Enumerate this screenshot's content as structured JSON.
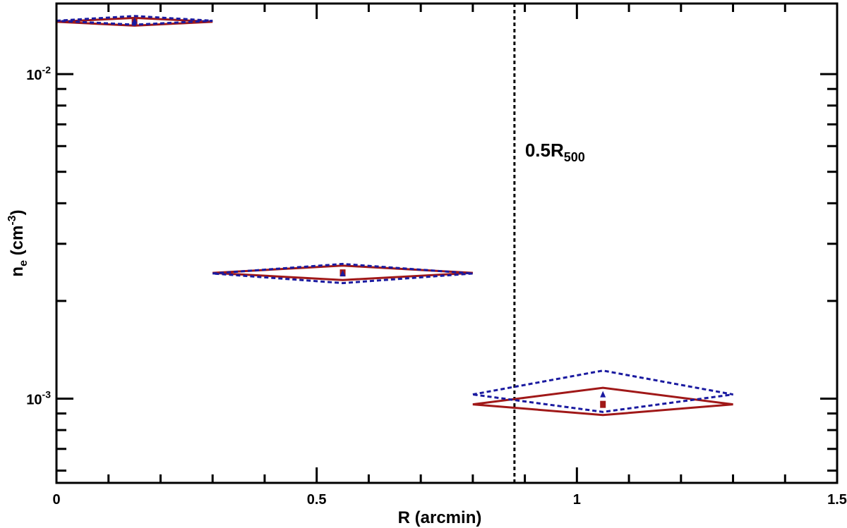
{
  "chart_data": {
    "type": "scatter",
    "title": "",
    "xlabel": "R (arcmin)",
    "ylabel_main": "n",
    "ylabel_sub": "e",
    "ylabel_unit_pre": " (cm",
    "ylabel_unit_sup": "-3",
    "ylabel_unit_post": ")",
    "xlim": [
      0,
      1.5
    ],
    "ylim": [
      0.00055,
      0.0165
    ],
    "yscale": "log",
    "grid": false,
    "x_ticks": [
      {
        "value": 0,
        "label": "0"
      },
      {
        "value": 0.5,
        "label": "0.5"
      },
      {
        "value": 1,
        "label": "1"
      },
      {
        "value": 1.5,
        "label": "1.5"
      }
    ],
    "y_ticks": [
      {
        "value": 0.01,
        "base": "10",
        "exp": "-2"
      },
      {
        "value": 0.001,
        "base": "10",
        "exp": "-3"
      }
    ],
    "vline": {
      "x": 0.88,
      "label_main": "0.5R",
      "label_sub": "500",
      "style": "dotted",
      "color": "#000000"
    },
    "series": [
      {
        "style": "solid",
        "color": "#a01818",
        "marker": "square",
        "points": [
          {
            "x": 0.15,
            "xlo": 0.0,
            "xhi": 0.3,
            "y": 0.0145,
            "ylo": 0.0141,
            "yhi": 0.0149
          },
          {
            "x": 0.55,
            "xlo": 0.3,
            "xhi": 0.8,
            "y": 0.00244,
            "ylo": 0.00232,
            "yhi": 0.00257
          },
          {
            "x": 1.05,
            "xlo": 0.8,
            "xhi": 1.3,
            "y": 0.00096,
            "ylo": 0.00089,
            "yhi": 0.00108
          }
        ]
      },
      {
        "style": "dotted",
        "color": "#1a1aa0",
        "marker": "triangle",
        "points": [
          {
            "x": 0.15,
            "xlo": 0.0,
            "xhi": 0.3,
            "y": 0.0146,
            "ylo": 0.0142,
            "yhi": 0.0151
          },
          {
            "x": 0.55,
            "xlo": 0.3,
            "xhi": 0.8,
            "y": 0.00243,
            "ylo": 0.00227,
            "yhi": 0.0026
          },
          {
            "x": 1.05,
            "xlo": 0.8,
            "xhi": 1.3,
            "y": 0.00103,
            "ylo": 0.00091,
            "yhi": 0.00122
          }
        ]
      }
    ]
  }
}
